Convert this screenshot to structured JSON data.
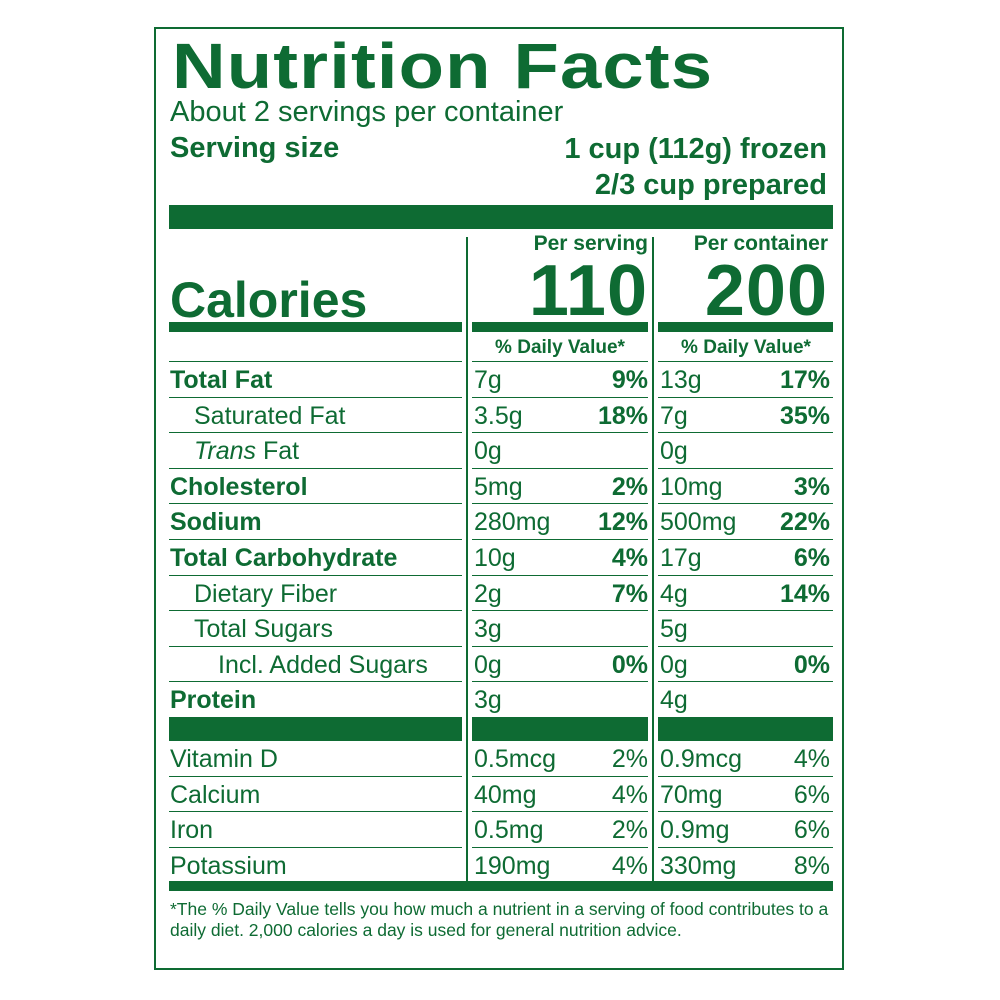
{
  "title": "Nutrition Facts",
  "servings_per_container": "About 2 servings per container",
  "serving_size": {
    "label": "Serving size",
    "line1": "1 cup (112g) frozen",
    "line2": "2/3 cup prepared"
  },
  "calories": {
    "label": "Calories",
    "per_serving_header": "Per serving",
    "per_container_header": "Per container",
    "per_serving": "110",
    "per_container": "200"
  },
  "daily_value_header": "% Daily Value*",
  "nutrients": [
    {
      "name": "Total Fat",
      "bold": true,
      "indent": 0,
      "s_amt": "7g",
      "s_pct": "9%",
      "c_amt": "13g",
      "c_pct": "17%"
    },
    {
      "name": "Saturated Fat",
      "bold": false,
      "indent": 1,
      "s_amt": "3.5g",
      "s_pct": "18%",
      "c_amt": "7g",
      "c_pct": "35%"
    },
    {
      "name_italic": "Trans",
      "name": " Fat",
      "bold": false,
      "indent": 1,
      "s_amt": "0g",
      "s_pct": "",
      "c_amt": "0g",
      "c_pct": ""
    },
    {
      "name": "Cholesterol",
      "bold": true,
      "indent": 0,
      "s_amt": "5mg",
      "s_pct": "2%",
      "c_amt": "10mg",
      "c_pct": "3%"
    },
    {
      "name": "Sodium",
      "bold": true,
      "indent": 0,
      "s_amt": "280mg",
      "s_pct": "12%",
      "c_amt": "500mg",
      "c_pct": "22%"
    },
    {
      "name": "Total Carbohydrate",
      "bold": true,
      "indent": 0,
      "s_amt": "10g",
      "s_pct": "4%",
      "c_amt": "17g",
      "c_pct": "6%"
    },
    {
      "name": "Dietary Fiber",
      "bold": false,
      "indent": 1,
      "s_amt": "2g",
      "s_pct": "7%",
      "c_amt": "4g",
      "c_pct": "14%"
    },
    {
      "name": "Total Sugars",
      "bold": false,
      "indent": 1,
      "s_amt": "3g",
      "s_pct": "",
      "c_amt": "5g",
      "c_pct": ""
    },
    {
      "name": "Incl. Added Sugars",
      "bold": false,
      "indent": 2,
      "s_amt": "0g",
      "s_pct": "0%",
      "c_amt": "0g",
      "c_pct": "0%"
    },
    {
      "name": "Protein",
      "bold": true,
      "indent": 0,
      "s_amt": "3g",
      "s_pct": "",
      "c_amt": "4g",
      "c_pct": ""
    }
  ],
  "vitamins": [
    {
      "name": "Vitamin D",
      "s_amt": "0.5mcg",
      "s_pct": "2%",
      "c_amt": "0.9mcg",
      "c_pct": "4%"
    },
    {
      "name": "Calcium",
      "s_amt": "40mg",
      "s_pct": "4%",
      "c_amt": "70mg",
      "c_pct": "6%"
    },
    {
      "name": "Iron",
      "s_amt": "0.5mg",
      "s_pct": "2%",
      "c_amt": "0.9mg",
      "c_pct": "6%"
    },
    {
      "name": "Potassium",
      "s_amt": "190mg",
      "s_pct": "4%",
      "c_amt": "330mg",
      "c_pct": "8%"
    }
  ],
  "footnote": "*The % Daily Value tells you how much a nutrient in a serving of food contributes to a daily diet. 2,000 calories a day is used for general nutrition advice.",
  "colors": {
    "ink": "#0e6b33",
    "background": "#ffffff"
  }
}
